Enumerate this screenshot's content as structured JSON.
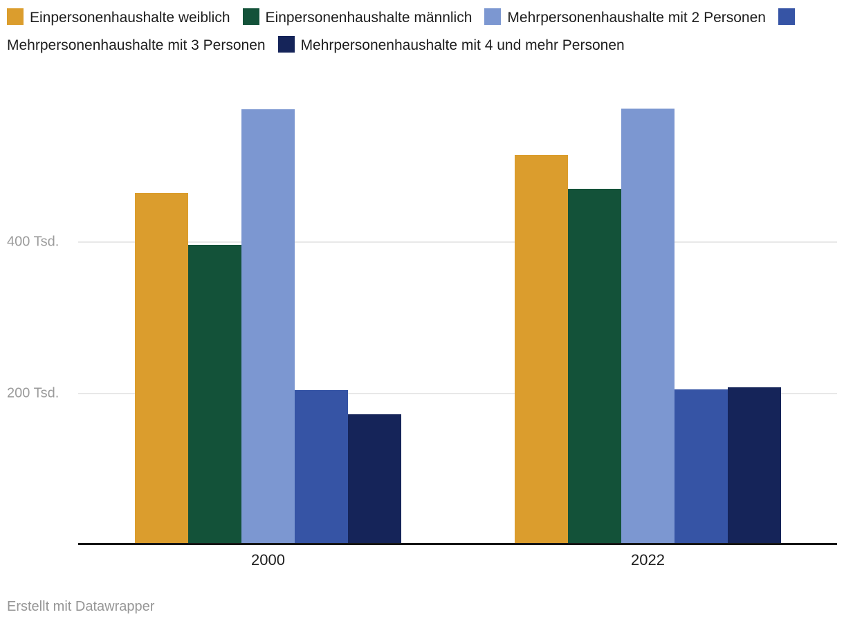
{
  "chart_data": {
    "type": "bar",
    "unit": "Tsd.",
    "categories": [
      "2000",
      "2022"
    ],
    "series": [
      {
        "name": "Einpersonenhaushalte weiblich",
        "color": "#DB9D2D",
        "values": [
          466,
          517
        ]
      },
      {
        "name": "Einpersonenhaushalte männlich",
        "color": "#135239",
        "values": [
          398,
          472
        ]
      },
      {
        "name": "Mehrpersonenhaushalte mit 2 Personen",
        "color": "#7C97D1",
        "values": [
          577,
          578
        ]
      },
      {
        "name": "Mehrpersonenhaushalte mit 3 Personen",
        "color": "#3654A5",
        "values": [
          205,
          206
        ]
      },
      {
        "name": "Mehrpersonenhaushalte mit 4 und mehr Personen",
        "color": "#152459",
        "values": [
          173,
          209
        ]
      }
    ],
    "ylim": [
      0,
      600
    ],
    "yticks": [
      {
        "value": 200,
        "label": "200 Tsd."
      },
      {
        "value": 400,
        "label": "400 Tsd."
      }
    ],
    "grid": "horizontal",
    "legend_position": "top",
    "colors": {
      "gridline": "#E8E8E8",
      "axis_line": "#161616",
      "ytick_text": "#9B9B9B",
      "xtick_text": "#1D1D1D",
      "legend_text": "#1D1D1D"
    }
  },
  "footer": {
    "attribution": "Erstellt mit Datawrapper"
  }
}
